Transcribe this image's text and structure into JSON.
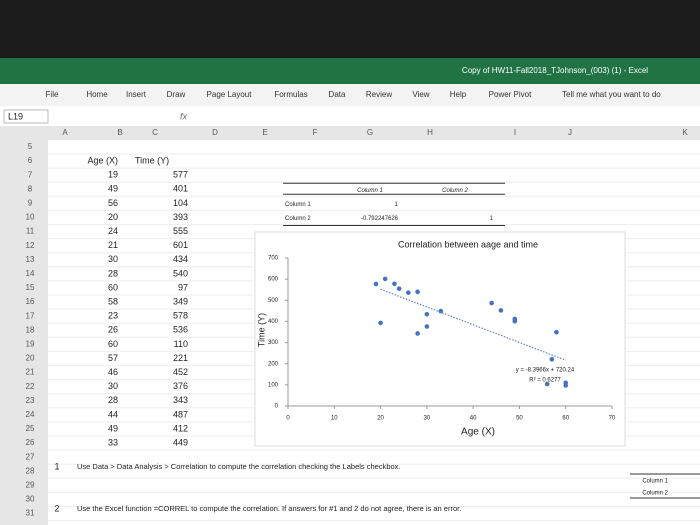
{
  "window": {
    "title": "Copy of HW11-Fall2018_TJohnson_(003) (1)  -  Excel"
  },
  "ribbon": {
    "tabs": [
      "File",
      "Home",
      "Insert",
      "Draw",
      "Page Layout",
      "Formulas",
      "Data",
      "Review",
      "View",
      "Help",
      "Power Pivot"
    ],
    "search": "Tell me what you want to do"
  },
  "formula_bar": {
    "name_box": "L19",
    "fx": "fx"
  },
  "columns": [
    "A",
    "B",
    "C",
    "D",
    "E",
    "F",
    "G",
    "H",
    "I",
    "J",
    "K"
  ],
  "rows": [
    5,
    6,
    7,
    8,
    9,
    10,
    11,
    12,
    13,
    14,
    15,
    16,
    17,
    18,
    19,
    20,
    21,
    22,
    23,
    24,
    25,
    26,
    27,
    28,
    29,
    30,
    31
  ],
  "correlation_table": {
    "headers": [
      "Column 1",
      "Column 2"
    ],
    "rows": [
      [
        "Column 1",
        "1",
        ""
      ],
      [
        "Column 2",
        "-0.792247626",
        "1"
      ]
    ]
  },
  "instructions": [
    {
      "number": "1",
      "text": "Use Data > Data Analysis > Correlation to compute the correlation checking the Labels checkbox."
    },
    {
      "number": "2",
      "text": "Use the Excel function =CORREL to compute the correlation. If answers for #1 and 2 do not agree, there is an error."
    }
  ],
  "side_labels": [
    "Column 1",
    "Column 2"
  ],
  "chart_data": {
    "type": "scatter",
    "title": "Correlation between aage and time",
    "x_label": "Age (X)",
    "y_label": "Time (Y)",
    "x": [
      19,
      49,
      56,
      20,
      24,
      21,
      30,
      28,
      60,
      58,
      23,
      26,
      60,
      57,
      46,
      30,
      28,
      44,
      49,
      33
    ],
    "values": [
      577,
      401,
      104,
      393,
      555,
      601,
      434,
      540,
      97,
      349,
      578,
      536,
      110,
      221,
      452,
      376,
      343,
      487,
      412,
      449
    ],
    "color": "#4472c4",
    "xlim": [
      0,
      70
    ],
    "xticks": [
      0,
      10,
      20,
      30,
      40,
      50,
      60,
      70
    ],
    "ylim": [
      0,
      700
    ],
    "yticks": [
      0,
      100,
      200,
      300,
      400,
      500,
      600,
      700
    ],
    "trendline": {
      "slope": -8.3966,
      "intercept": 720.24,
      "equation": "y = -8.3966x + 720.24",
      "r2_label": "R² = 0.6277"
    }
  }
}
